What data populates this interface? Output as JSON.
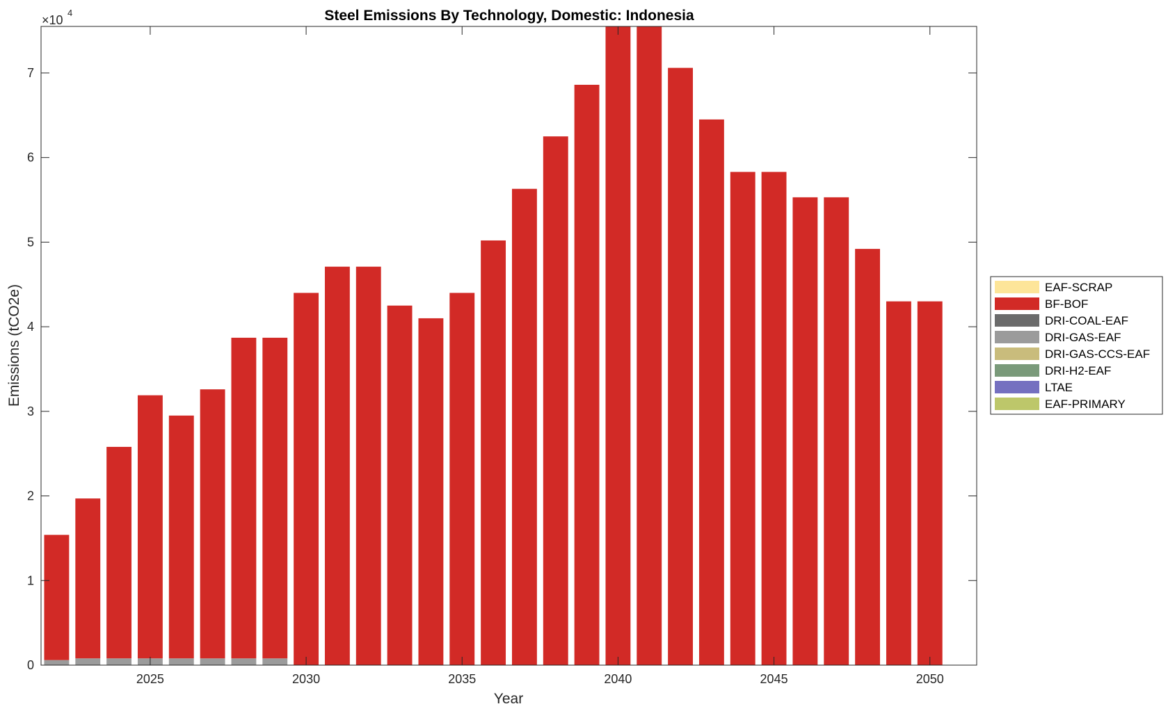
{
  "chart_data": {
    "type": "bar",
    "stacked": true,
    "title": "Steel Emissions By Technology, Domestic: Indonesia",
    "xlabel": "Year",
    "ylabel": "Emissions (tCO2e)",
    "y_exponent_label": "×10",
    "y_exponent_power": "4",
    "ylim": [
      0,
      75500
    ],
    "xlim": [
      2021.5,
      2051.5
    ],
    "y_ticks": [
      0,
      10000,
      20000,
      30000,
      40000,
      50000,
      60000,
      70000
    ],
    "y_tick_labels": [
      "0",
      "1",
      "2",
      "3",
      "4",
      "5",
      "6",
      "7"
    ],
    "x_ticks": [
      2025,
      2030,
      2035,
      2040,
      2045,
      2050
    ],
    "x_tick_labels": [
      "2025",
      "2030",
      "2035",
      "2040",
      "2045",
      "2050"
    ],
    "grid": false,
    "legend_position": "right",
    "x": [
      2022,
      2023,
      2024,
      2025,
      2026,
      2027,
      2028,
      2029,
      2030,
      2031,
      2032,
      2033,
      2034,
      2035,
      2036,
      2037,
      2038,
      2039,
      2040,
      2041,
      2042,
      2043,
      2044,
      2045,
      2046,
      2047,
      2048,
      2049,
      2050
    ],
    "series": [
      {
        "name": "EAF-PRIMARY",
        "color": "#bdc76a",
        "values": [
          0,
          0,
          0,
          0,
          0,
          0,
          0,
          0,
          0,
          0,
          0,
          0,
          0,
          0,
          0,
          0,
          0,
          0,
          0,
          0,
          0,
          0,
          0,
          0,
          0,
          0,
          0,
          0,
          0
        ]
      },
      {
        "name": "LTAE",
        "color": "#7570c0",
        "values": [
          0,
          0,
          0,
          0,
          0,
          0,
          0,
          0,
          0,
          0,
          0,
          0,
          0,
          0,
          0,
          0,
          0,
          0,
          0,
          0,
          0,
          0,
          0,
          0,
          0,
          0,
          0,
          0,
          0
        ]
      },
      {
        "name": "DRI-H2-EAF",
        "color": "#7a9a7a",
        "values": [
          0,
          0,
          0,
          0,
          0,
          0,
          0,
          0,
          0,
          0,
          0,
          0,
          0,
          0,
          0,
          0,
          0,
          0,
          0,
          0,
          0,
          0,
          0,
          0,
          0,
          0,
          0,
          0,
          0
        ]
      },
      {
        "name": "DRI-GAS-CCS-EAF",
        "color": "#c9bc7c",
        "values": [
          0,
          0,
          0,
          0,
          0,
          0,
          0,
          0,
          0,
          0,
          0,
          0,
          0,
          0,
          0,
          0,
          0,
          0,
          0,
          0,
          0,
          0,
          0,
          0,
          0,
          0,
          0,
          0,
          0
        ]
      },
      {
        "name": "DRI-GAS-EAF",
        "color": "#9b9b9b",
        "values": [
          600,
          800,
          800,
          800,
          800,
          800,
          800,
          800,
          0,
          0,
          0,
          0,
          0,
          0,
          0,
          0,
          0,
          0,
          0,
          0,
          0,
          0,
          0,
          0,
          0,
          0,
          0,
          0,
          0
        ]
      },
      {
        "name": "DRI-COAL-EAF",
        "color": "#6b6b6b",
        "values": [
          0,
          0,
          0,
          0,
          0,
          0,
          0,
          0,
          0,
          0,
          0,
          0,
          0,
          0,
          0,
          0,
          0,
          0,
          0,
          0,
          0,
          0,
          0,
          0,
          0,
          0,
          0,
          0,
          0
        ]
      },
      {
        "name": "BF-BOF",
        "color": "#d22a26",
        "values": [
          14800,
          18900,
          25000,
          31100,
          28700,
          31800,
          37900,
          37900,
          44000,
          47100,
          47100,
          42500,
          41000,
          44000,
          50200,
          56300,
          62500,
          68600,
          78000,
          78000,
          70600,
          64500,
          58300,
          58300,
          55300,
          55300,
          49200,
          43000,
          43000
        ]
      },
      {
        "name": "EAF-SCRAP",
        "color": "#fde599",
        "values": [
          0,
          0,
          0,
          0,
          0,
          0,
          0,
          0,
          0,
          0,
          0,
          0,
          0,
          0,
          0,
          0,
          0,
          0,
          0,
          0,
          0,
          0,
          0,
          0,
          0,
          0,
          0,
          0,
          0
        ]
      }
    ]
  }
}
